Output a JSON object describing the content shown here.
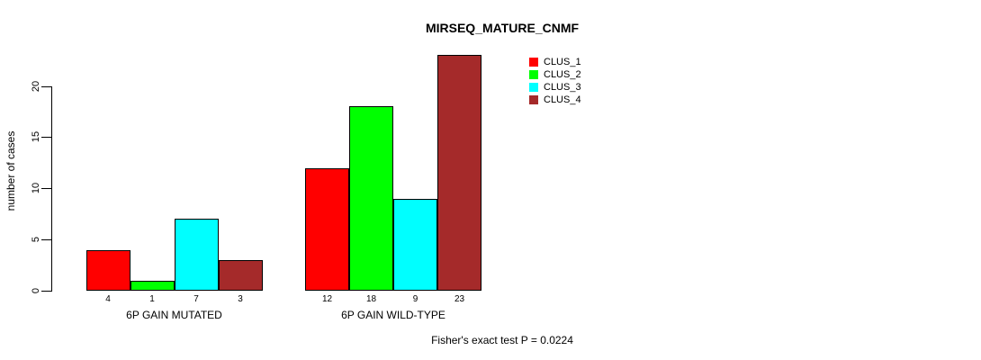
{
  "chart_data": {
    "type": "bar",
    "title": "MIRSEQ_MATURE_CNMF",
    "ylabel": "number of cases",
    "xlabel": "",
    "categories": [
      "6P GAIN MUTATED",
      "6P GAIN WILD-TYPE"
    ],
    "series": [
      {
        "name": "CLUS_1",
        "color": "#ff0000",
        "values": [
          4,
          12
        ]
      },
      {
        "name": "CLUS_2",
        "color": "#00ff00",
        "values": [
          1,
          18
        ]
      },
      {
        "name": "CLUS_3",
        "color": "#00ffff",
        "values": [
          7,
          9
        ]
      },
      {
        "name": "CLUS_4",
        "color": "#a52a2a",
        "values": [
          3,
          23
        ]
      }
    ],
    "yticks": [
      0,
      5,
      10,
      15,
      20
    ],
    "ylim": [
      0,
      23
    ],
    "grid": false,
    "bar_value_labels_shown": true,
    "legend_position": "top-right",
    "annotation": "Fisher's exact test P = 0.0224",
    "axis_color": "#000000",
    "bar_border_color": "#000000"
  }
}
